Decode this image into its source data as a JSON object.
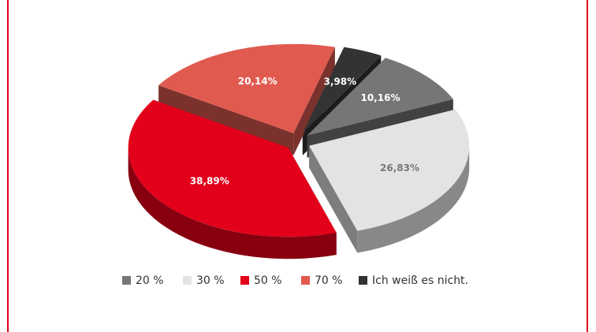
{
  "chart_data": {
    "type": "pie",
    "categories": [
      "20 %",
      "30 %",
      "50 %",
      "70 %",
      "Ich weiß es nicht."
    ],
    "values": [
      10.16,
      26.83,
      38.89,
      20.14,
      3.98
    ],
    "value_labels": [
      "10,16%",
      "26,83%",
      "38,89%",
      "20,14%",
      "3,98%"
    ],
    "colors": [
      "#767676",
      "#e3e3e3",
      "#e2001a",
      "#e05a50",
      "#333333"
    ],
    "legend": "bottom"
  }
}
